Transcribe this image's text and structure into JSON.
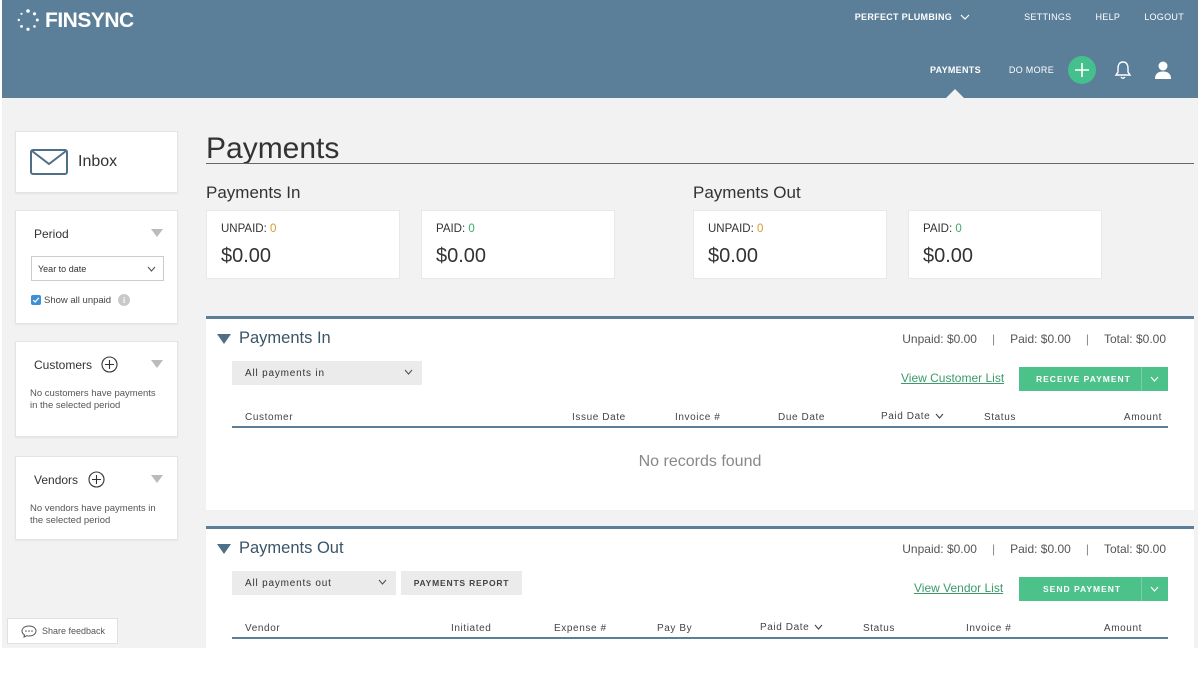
{
  "header": {
    "brand": "FINSYNC",
    "company": "PERFECT PLUMBING",
    "top_links": [
      "SETTINGS",
      "HELP",
      "LOGOUT"
    ],
    "nav": {
      "active": "PAYMENTS",
      "more": "DO MORE"
    },
    "accent_color": "#44c08d",
    "bar_color": "#5b7f99"
  },
  "sidebar": {
    "inbox_label": "Inbox",
    "period": {
      "title": "Period",
      "selected": "Year to date",
      "show_unpaid_label": "Show all unpaid",
      "show_unpaid_checked": true
    },
    "customers": {
      "title": "Customers",
      "empty": "No customers have payments in the selected period"
    },
    "vendors": {
      "title": "Vendors",
      "empty": "No vendors have payments in the selected period"
    },
    "feedback_label": "Share feedback"
  },
  "page": {
    "title": "Payments"
  },
  "summary": {
    "in": {
      "heading": "Payments In",
      "unpaid_label": "UNPAID:",
      "unpaid_count": "0",
      "unpaid_amount": "$0.00",
      "paid_label": "PAID:",
      "paid_count": "0",
      "paid_amount": "$0.00"
    },
    "out": {
      "heading": "Payments Out",
      "unpaid_label": "UNPAID:",
      "unpaid_count": "0",
      "unpaid_amount": "$0.00",
      "paid_label": "PAID:",
      "paid_count": "0",
      "paid_amount": "$0.00"
    }
  },
  "payments_in": {
    "title": "Payments In",
    "totals": {
      "unpaid": "Unpaid: $0.00",
      "separator": "|",
      "paid": "Paid: $0.00",
      "total": "Total: $0.00"
    },
    "filter": "All payments in",
    "view_link": "View Customer List",
    "action": "RECEIVE PAYMENT",
    "columns": [
      "Customer",
      "Issue Date",
      "Invoice #",
      "Due Date",
      "Paid Date",
      "Status",
      "Amount"
    ],
    "empty": "No records found"
  },
  "payments_out": {
    "title": "Payments Out",
    "totals": {
      "unpaid": "Unpaid: $0.00",
      "separator": "|",
      "paid": "Paid: $0.00",
      "total": "Total: $0.00"
    },
    "filter": "All payments out",
    "report": "PAYMENTS REPORT",
    "view_link": "View Vendor List",
    "action": "SEND PAYMENT",
    "columns": [
      "Vendor",
      "Initiated",
      "Expense #",
      "Pay By",
      "Paid Date",
      "Status",
      "Invoice #",
      "Amount"
    ]
  }
}
